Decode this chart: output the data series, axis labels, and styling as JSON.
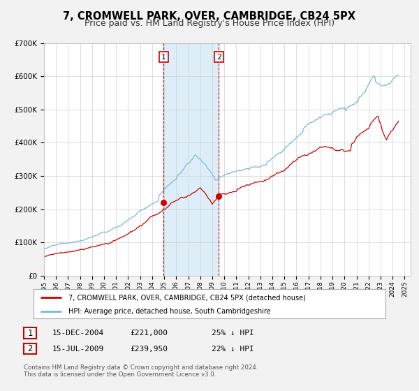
{
  "title": "7, CROMWELL PARK, OVER, CAMBRIDGE, CB24 5PX",
  "subtitle": "Price paid vs. HM Land Registry's House Price Index (HPI)",
  "ylim": [
    0,
    700000
  ],
  "yticks": [
    0,
    100000,
    200000,
    300000,
    400000,
    500000,
    600000,
    700000
  ],
  "ytick_labels": [
    "£0",
    "£100K",
    "£200K",
    "£300K",
    "£400K",
    "£500K",
    "£600K",
    "£700K"
  ],
  "xlim_start": 1995.0,
  "xlim_end": 2025.5,
  "xtick_years": [
    1995,
    1996,
    1997,
    1998,
    1999,
    2000,
    2001,
    2002,
    2003,
    2004,
    2005,
    2006,
    2007,
    2008,
    2009,
    2010,
    2011,
    2012,
    2013,
    2014,
    2015,
    2016,
    2017,
    2018,
    2019,
    2020,
    2021,
    2022,
    2023,
    2024,
    2025
  ],
  "hpi_color": "#7ab8d9",
  "price_color": "#cc0000",
  "sale1_x": 2004.96,
  "sale1_y": 221000,
  "sale2_x": 2009.54,
  "sale2_y": 239950,
  "vline1_x": 2004.96,
  "vline2_x": 2009.54,
  "shade_color": "#ddeef8",
  "legend_label1": "7, CROMWELL PARK, OVER, CAMBRIDGE, CB24 5PX (detached house)",
  "legend_label2": "HPI: Average price, detached house, South Cambridgeshire",
  "table_row1": [
    "1",
    "15-DEC-2004",
    "£221,000",
    "25% ↓ HPI"
  ],
  "table_row2": [
    "2",
    "15-JUL-2009",
    "£239,950",
    "22% ↓ HPI"
  ],
  "footnote1": "Contains HM Land Registry data © Crown copyright and database right 2024.",
  "footnote2": "This data is licensed under the Open Government Licence v3.0.",
  "background_color": "#f2f2f2",
  "plot_bg_color": "#ffffff",
  "title_fontsize": 10.5,
  "subtitle_fontsize": 9,
  "grid_color": "#d0d0d0"
}
